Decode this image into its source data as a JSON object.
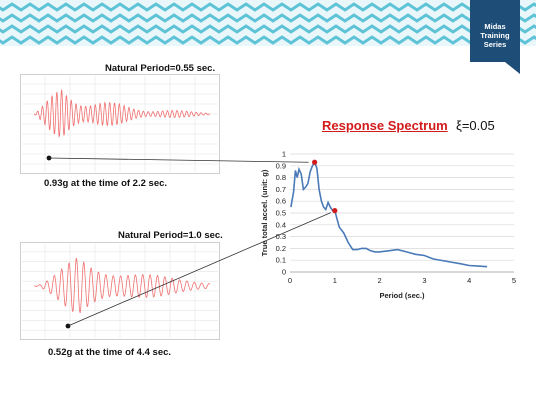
{
  "badge": {
    "line1": "Midas",
    "line2": "Training",
    "line3": "Series"
  },
  "colors": {
    "banner": "#c9ecf3",
    "zigzag": "#5fc3d7",
    "badge": "#1e4d78",
    "spectrum_line": "#4a7ab8",
    "accent_red": "#d21b1b",
    "record_line": "#f07070"
  },
  "record1": {
    "title": "Natural Period=0.55 sec.",
    "caption": "0.93g at the time of 2.2 sec."
  },
  "record2": {
    "title": "Natural Period=1.0 sec.",
    "caption": "0.52g at the time of 4.4 sec."
  },
  "spectrum": {
    "title": "Response Spectrum",
    "damping_symbol": "ξ=0.05"
  },
  "chart_data": {
    "type": "line",
    "xlabel": "Period  (sec.)",
    "ylabel": "True total accel.  (unit: g)",
    "xlim": [
      0,
      5
    ],
    "ylim": [
      0,
      1
    ],
    "xticks": [
      0,
      1,
      2,
      3,
      4,
      5
    ],
    "yticks": [
      0,
      0.1,
      0.2,
      0.3,
      0.4,
      0.5,
      0.6,
      0.7,
      0.8,
      0.9,
      1
    ],
    "grid": "horizontal",
    "x": [
      0.02,
      0.08,
      0.12,
      0.16,
      0.2,
      0.25,
      0.3,
      0.35,
      0.4,
      0.45,
      0.5,
      0.55,
      0.6,
      0.65,
      0.7,
      0.75,
      0.8,
      0.85,
      0.9,
      0.95,
      1.0,
      1.05,
      1.1,
      1.2,
      1.3,
      1.4,
      1.5,
      1.6,
      1.7,
      1.8,
      1.9,
      2.0,
      2.2,
      2.4,
      2.6,
      2.8,
      3.0,
      3.2,
      3.5,
      3.8,
      4.0,
      4.2,
      4.4
    ],
    "y": [
      0.55,
      0.68,
      0.86,
      0.8,
      0.87,
      0.83,
      0.7,
      0.72,
      0.75,
      0.85,
      0.9,
      0.93,
      0.88,
      0.7,
      0.6,
      0.55,
      0.53,
      0.59,
      0.55,
      0.52,
      0.52,
      0.45,
      0.38,
      0.33,
      0.25,
      0.19,
      0.19,
      0.2,
      0.2,
      0.18,
      0.17,
      0.17,
      0.18,
      0.19,
      0.17,
      0.15,
      0.14,
      0.11,
      0.09,
      0.07,
      0.055,
      0.05,
      0.045
    ],
    "markers": [
      {
        "x": 0.55,
        "y": 0.93
      },
      {
        "x": 1.0,
        "y": 0.52
      }
    ]
  }
}
